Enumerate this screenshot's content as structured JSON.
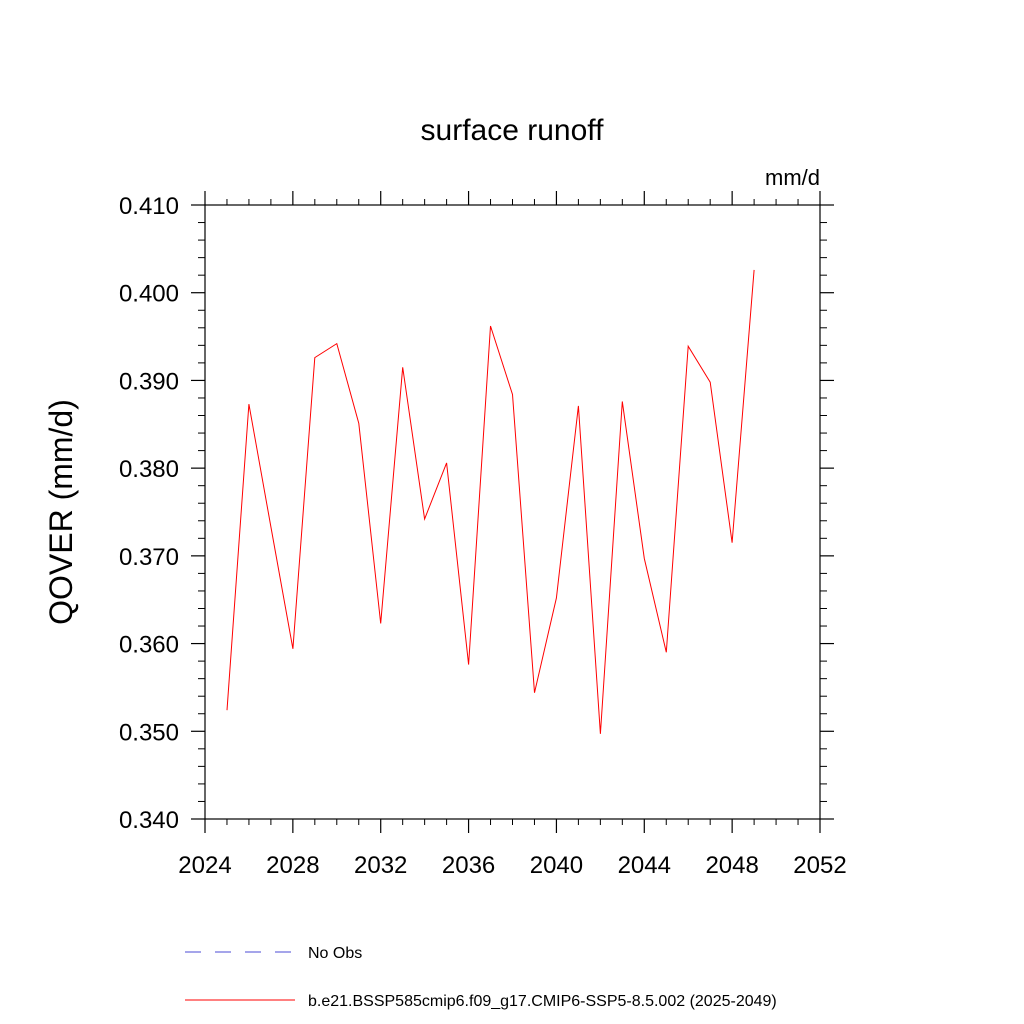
{
  "chart_data": {
    "type": "line",
    "title": "surface runoff",
    "units": "mm/d",
    "ylabel": "QOVER  (mm/d)",
    "xlabel": "",
    "xlim": [
      2024,
      2052
    ],
    "ylim": [
      0.34,
      0.41
    ],
    "x_ticks": [
      "2024",
      "2028",
      "2032",
      "2036",
      "2040",
      "2044",
      "2048",
      "2052"
    ],
    "y_ticks": [
      "0.340",
      "0.350",
      "0.360",
      "0.370",
      "0.380",
      "0.390",
      "0.400",
      "0.410"
    ],
    "grid": false,
    "legend_placement": "bottom",
    "legend": [
      {
        "label": "No Obs",
        "style": "dashed",
        "color": "#4b4bd6"
      },
      {
        "label": "b.e21.BSSP585cmip6.f09_g17.CMIP6-SSP5-8.5.002 (2025-2049)",
        "style": "solid",
        "color": "#ff0000"
      }
    ],
    "series": [
      {
        "color": "#ff0000",
        "x": [
          2025,
          2026,
          2027,
          2028,
          2029,
          2030,
          2031,
          2032,
          2033,
          2034,
          2035,
          2036,
          2037,
          2038,
          2039,
          2040,
          2041,
          2042,
          2043,
          2044,
          2045,
          2046,
          2047,
          2048,
          2049
        ],
        "values": [
          0.3524,
          0.3873,
          0.3733,
          0.3594,
          0.3926,
          0.3942,
          0.3851,
          0.3623,
          0.3915,
          0.3742,
          0.3806,
          0.3576,
          0.3962,
          0.3884,
          0.3544,
          0.3652,
          0.3871,
          0.3497,
          0.3876,
          0.3697,
          0.359,
          0.3939,
          0.3898,
          0.3715,
          0.4026
        ]
      }
    ]
  }
}
